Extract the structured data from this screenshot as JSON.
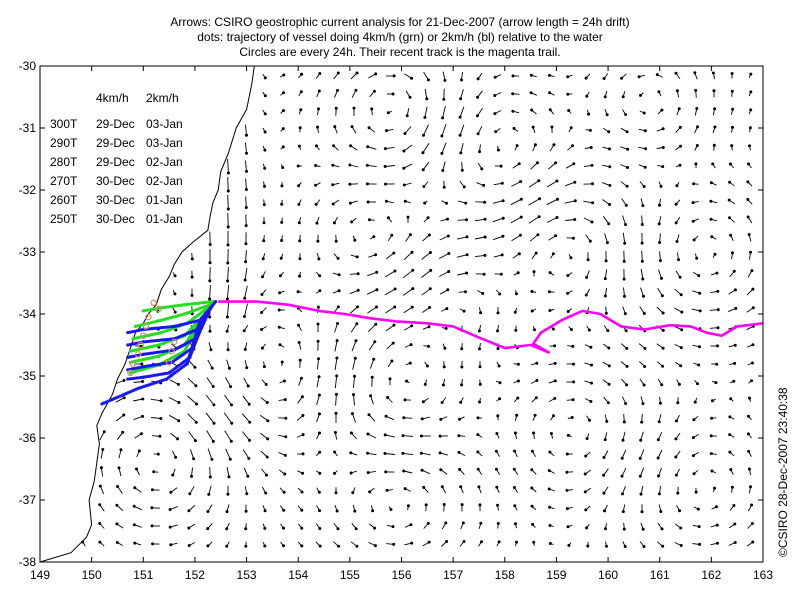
{
  "title": {
    "line1": "Arrows: CSIRO geostrophic current analysis for 21-Dec-2007 (arrow length = 24h drift)",
    "line2": "dots: trajectory of vessel doing 4km/h (grn) or 2km/h (bl) relative to the water",
    "line3": "Circles are every 24h. Their recent track is the magenta trail."
  },
  "table": {
    "headers": [
      "4km/h",
      "2km/h"
    ],
    "rows": [
      {
        "heading": "300T",
        "fast": "29-Dec",
        "slow": "03-Jan"
      },
      {
        "heading": "290T",
        "fast": "29-Dec",
        "slow": "03-Jan"
      },
      {
        "heading": "280T",
        "fast": "29-Dec",
        "slow": "02-Jan"
      },
      {
        "heading": "270T",
        "fast": "30-Dec",
        "slow": "02-Jan"
      },
      {
        "heading": "260T",
        "fast": "30-Dec",
        "slow": "01-Jan"
      },
      {
        "heading": "250T",
        "fast": "30-Dec",
        "slow": "01-Jan"
      }
    ]
  },
  "axes": {
    "x_ticks": [
      "149",
      "150",
      "151",
      "152",
      "153",
      "154",
      "155",
      "156",
      "157",
      "158",
      "159",
      "160",
      "161",
      "162",
      "163"
    ],
    "y_ticks": [
      "-30",
      "-31",
      "-32",
      "-33",
      "-34",
      "-35",
      "-36",
      "-37",
      "-38"
    ],
    "x_range": [
      149,
      163
    ],
    "y_range": [
      -38,
      -30
    ]
  },
  "copyright": "©CSIRO 28-Dec-2007 23:40:38",
  "colors": {
    "arrows": "#000000",
    "coastline": "#000000",
    "fast_trajectory": "#22dd22",
    "slow_trajectory": "#1818ee",
    "recent_track": "#ff00ff",
    "daily_circles": "#d09060"
  },
  "recent_track": [
    [
      152.45,
      -33.8
    ],
    [
      153.2,
      -33.8
    ],
    [
      153.8,
      -33.85
    ],
    [
      154.4,
      -33.95
    ],
    [
      154.9,
      -34.0
    ],
    [
      155.4,
      -34.07
    ],
    [
      155.9,
      -34.12
    ],
    [
      156.5,
      -34.15
    ],
    [
      157.0,
      -34.2
    ],
    [
      157.5,
      -34.38
    ],
    [
      158.0,
      -34.55
    ],
    [
      158.5,
      -34.5
    ],
    [
      158.85,
      -34.62
    ],
    [
      158.55,
      -34.48
    ],
    [
      158.7,
      -34.3
    ],
    [
      159.1,
      -34.1
    ],
    [
      159.5,
      -33.95
    ],
    [
      159.85,
      -34.0
    ],
    [
      160.25,
      -34.2
    ],
    [
      160.7,
      -34.25
    ],
    [
      161.2,
      -34.18
    ],
    [
      161.6,
      -34.2
    ],
    [
      161.9,
      -34.3
    ],
    [
      162.2,
      -34.35
    ],
    [
      162.5,
      -34.2
    ],
    [
      163.0,
      -34.15
    ]
  ],
  "fast_trajectories": [
    {
      "heading": "300T",
      "path": [
        [
          152.35,
          -33.8
        ],
        [
          151.8,
          -33.85
        ],
        [
          151.35,
          -33.9
        ],
        [
          151.0,
          -33.95
        ]
      ]
    },
    {
      "heading": "290T",
      "path": [
        [
          152.3,
          -33.85
        ],
        [
          151.8,
          -34.0
        ],
        [
          151.35,
          -34.1
        ],
        [
          150.85,
          -34.2
        ]
      ]
    },
    {
      "heading": "280T",
      "path": [
        [
          152.25,
          -33.9
        ],
        [
          151.85,
          -34.15
        ],
        [
          151.35,
          -34.3
        ],
        [
          150.8,
          -34.4
        ]
      ]
    },
    {
      "heading": "270T",
      "path": [
        [
          152.2,
          -34.0
        ],
        [
          151.8,
          -34.35
        ],
        [
          151.3,
          -34.5
        ],
        [
          150.75,
          -34.6
        ]
      ]
    },
    {
      "heading": "260T",
      "path": [
        [
          152.15,
          -34.05
        ],
        [
          151.8,
          -34.5
        ],
        [
          151.3,
          -34.68
        ],
        [
          150.75,
          -34.78
        ]
      ]
    },
    {
      "heading": "250T",
      "path": [
        [
          152.1,
          -34.1
        ],
        [
          151.8,
          -34.6
        ],
        [
          151.3,
          -34.82
        ],
        [
          150.75,
          -34.95
        ]
      ]
    }
  ],
  "slow_trajectories": [
    {
      "heading": "300T",
      "path": [
        [
          152.4,
          -33.8
        ],
        [
          152.1,
          -34.1
        ],
        [
          151.6,
          -34.2
        ],
        [
          151.0,
          -34.25
        ],
        [
          150.7,
          -34.3
        ]
      ]
    },
    {
      "heading": "290T",
      "path": [
        [
          152.35,
          -33.85
        ],
        [
          152.05,
          -34.25
        ],
        [
          151.6,
          -34.4
        ],
        [
          151.0,
          -34.45
        ],
        [
          150.7,
          -34.5
        ]
      ]
    },
    {
      "heading": "280T",
      "path": [
        [
          152.3,
          -33.9
        ],
        [
          152.0,
          -34.4
        ],
        [
          151.6,
          -34.58
        ],
        [
          151.0,
          -34.65
        ],
        [
          150.7,
          -34.7
        ]
      ]
    },
    {
      "heading": "270T",
      "path": [
        [
          152.25,
          -34.0
        ],
        [
          151.95,
          -34.55
        ],
        [
          151.55,
          -34.78
        ],
        [
          151.0,
          -34.85
        ],
        [
          150.7,
          -34.9
        ]
      ]
    },
    {
      "heading": "260T",
      "path": [
        [
          152.2,
          -34.05
        ],
        [
          151.9,
          -34.7
        ],
        [
          151.5,
          -34.95
        ],
        [
          151.0,
          -35.02
        ],
        [
          150.7,
          -35.05
        ]
      ]
    },
    {
      "heading": "250T",
      "path": [
        [
          152.1,
          -34.1
        ],
        [
          151.85,
          -34.8
        ],
        [
          151.45,
          -35.05
        ],
        [
          150.9,
          -35.2
        ],
        [
          150.2,
          -35.45
        ]
      ]
    }
  ],
  "daily_circles": [
    [
      151.2,
      -33.82
    ],
    [
      151.3,
      -33.92
    ],
    [
      151.1,
      -34.05
    ],
    [
      151.05,
      -34.2
    ],
    [
      151.0,
      -34.35
    ],
    [
      150.95,
      -34.5
    ],
    [
      150.9,
      -34.65
    ],
    [
      151.6,
      -34.45
    ],
    [
      151.55,
      -34.6
    ],
    [
      151.5,
      -34.78
    ],
    [
      150.8,
      -34.8
    ],
    [
      150.75,
      -34.95
    ]
  ],
  "coastline": [
    [
      149.0,
      -38.0
    ],
    [
      149.6,
      -37.85
    ],
    [
      149.9,
      -37.6
    ],
    [
      150.0,
      -37.4
    ],
    [
      149.95,
      -37.0
    ],
    [
      150.05,
      -36.7
    ],
    [
      150.1,
      -36.4
    ],
    [
      150.15,
      -36.1
    ],
    [
      150.1,
      -35.8
    ],
    [
      150.2,
      -35.6
    ],
    [
      150.4,
      -35.3
    ],
    [
      150.5,
      -35.05
    ],
    [
      150.65,
      -34.8
    ],
    [
      150.75,
      -34.55
    ],
    [
      150.85,
      -34.3
    ],
    [
      151.0,
      -34.15
    ],
    [
      151.1,
      -34.0
    ],
    [
      151.25,
      -33.85
    ],
    [
      151.35,
      -33.6
    ],
    [
      151.5,
      -33.4
    ],
    [
      151.6,
      -33.2
    ],
    [
      151.75,
      -33.0
    ],
    [
      151.95,
      -32.85
    ],
    [
      152.25,
      -32.65
    ],
    [
      152.3,
      -32.4
    ],
    [
      152.35,
      -32.2
    ],
    [
      152.45,
      -32.0
    ],
    [
      152.5,
      -31.7
    ],
    [
      152.65,
      -31.4
    ],
    [
      152.8,
      -31.0
    ],
    [
      153.0,
      -30.7
    ],
    [
      153.1,
      -30.3
    ],
    [
      153.15,
      -30.0
    ]
  ]
}
